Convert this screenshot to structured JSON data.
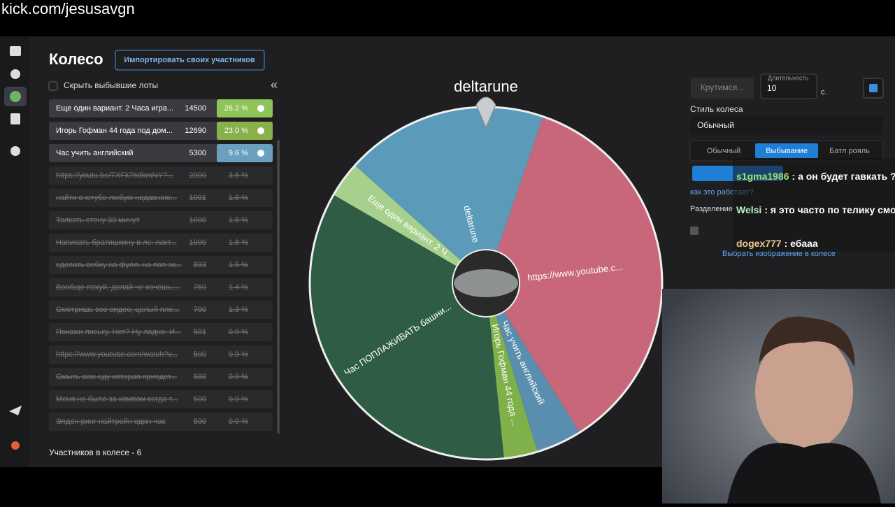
{
  "stream": {
    "url": "kick.com/jesusavgn"
  },
  "header": {
    "title": "Колесо",
    "import_button": "Импортировать своих участников"
  },
  "list": {
    "hide_checkbox": "Скрыть выбывшие лоты",
    "collapse": "«",
    "lots": [
      {
        "name": "Еще один вариант. 2 Часа игра...",
        "amount": 14500,
        "percent": "26.2 %",
        "eliminated": false,
        "color": "#8fc45a"
      },
      {
        "name": "Игорь Гофман 44 года под дом...",
        "amount": 12690,
        "percent": "23.0 %",
        "eliminated": false,
        "color": "#88b04b"
      },
      {
        "name": "Час учить английский",
        "amount": 5300,
        "percent": "9.6 %",
        "eliminated": false,
        "color": "#6b9fbf"
      },
      {
        "name": "https://youtu.be/TXFk76dkmNY?...",
        "amount": 2000,
        "percent": "3.6 %",
        "eliminated": true
      },
      {
        "name": "найти в ютубе любую недавною...",
        "amount": 1001,
        "percent": "1.8 %",
        "eliminated": true
      },
      {
        "name": "Толкать стену 30 минут",
        "amount": 1000,
        "percent": "1.8 %",
        "eliminated": true
      },
      {
        "name": "Написать братишкину в лс: лакт...",
        "amount": 1000,
        "percent": "1.8 %",
        "eliminated": true
      },
      {
        "name": "сделать вебку на фулл. на пол эк...",
        "amount": 833,
        "percent": "1.5 %",
        "eliminated": true
      },
      {
        "name": "Вообще похуй, делай че хочешь,...",
        "amount": 750,
        "percent": "1.4 %",
        "eliminated": true
      },
      {
        "name": "Смотришь все видео, целый пле...",
        "amount": 700,
        "percent": "1.3 %",
        "eliminated": true
      },
      {
        "name": "Покажи письку. Нет? Ну ладно. И...",
        "amount": 501,
        "percent": "0.9 %",
        "eliminated": true
      },
      {
        "name": "https://www.youtube.com/watch?v...",
        "amount": 500,
        "percent": "0.9 %",
        "eliminated": true
      },
      {
        "name": "Смыть всю еду которая приедет...",
        "amount": 500,
        "percent": "0.9 %",
        "eliminated": true
      },
      {
        "name": "Меня не было за компом когда т...",
        "amount": 500,
        "percent": "0.9 %",
        "eliminated": true
      },
      {
        "name": "Элден ринг найтрейн один час",
        "amount": 500,
        "percent": "0.9 %",
        "eliminated": true
      }
    ],
    "footer": "Участников в колесе - 6"
  },
  "wheel": {
    "winner": "deltarune",
    "segments": [
      {
        "label": "deltarune",
        "share": 18.6,
        "color": "#5b9bb9"
      },
      {
        "label": "https://www.youtube.c...",
        "share": 35.8,
        "color": "#c8677a"
      },
      {
        "label": "Час учить английский",
        "share": 4.2,
        "color": "#5a8eae"
      },
      {
        "label": "Игорь Гофман 44 года ...",
        "share": 3.1,
        "color": "#7fb04a"
      },
      {
        "label": "Час ПОПЛАЖИВАТЬ башни...",
        "share": 35.0,
        "color": "#2f5c45"
      },
      {
        "label": "Еще один вариант. 2 Ч...",
        "share": 3.3,
        "color": "#a7d08c"
      }
    ]
  },
  "settings": {
    "spin_button": "Крутимся...",
    "duration_label": "Длительность",
    "duration_value": "10",
    "duration_unit": "с.",
    "style_label": "Стиль колеса",
    "style_value": "Обычный",
    "tabs": [
      "Обычный",
      "Выбывание",
      "Батл рояль"
    ],
    "how_link": "как это работает?",
    "split_label": "Разделение",
    "image_link": "Выбрать изображение в колесе"
  },
  "chat": [
    {
      "user": "s1gma1986",
      "text": ": а он будет гавкать ?",
      "color": "#9fe07a"
    },
    {
      "user": "Welsi",
      "text": ": я это часто по телику смотрел в детстве",
      "color": "#b8f0c8"
    },
    {
      "user": "dogex777",
      "text": ": ебааа",
      "color": "#f0c890"
    }
  ]
}
